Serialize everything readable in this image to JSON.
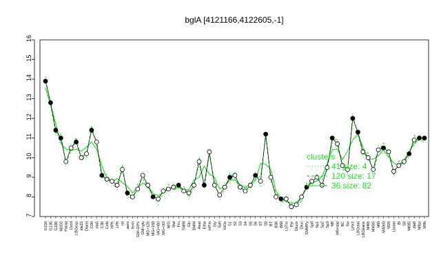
{
  "chart_data": {
    "type": "line",
    "title": "bglA [4121166,4122605,-1]",
    "xlabel": "",
    "ylabel": "",
    "ylim": [
      7,
      16
    ],
    "yticks": [
      7,
      8,
      9,
      10,
      11,
      12,
      13,
      14,
      15,
      16
    ],
    "grid": false,
    "legend_placement": "right",
    "legend": [
      {
        "label": "clusters",
        "style": "none"
      },
      {
        "label": "41 size: 4",
        "style": "dotted"
      },
      {
        "label": "120 size: 17",
        "style": "dashed"
      },
      {
        "label": "36 size: 82",
        "style": "solid"
      }
    ],
    "categories": [
      "G150",
      "G135",
      "G180",
      "M2D2",
      "Paraq",
      "Oxctl",
      "LBGexp",
      "dia15",
      "Diami",
      "C90",
      "dia5",
      "C30",
      "Cold",
      "HPh",
      "LPh",
      "nit",
      "aero",
      "ferm",
      "GM+10%",
      "GM+glu",
      "MG+120",
      "MG+150",
      "MG+t60",
      "MG+t15",
      "M/G",
      "Mal",
      "Fru",
      "SMM",
      "Glu",
      "BMM",
      "Heat",
      "Etha",
      "HiTm",
      "Gly",
      "Salt",
      "HiOs",
      "S1",
      "S2",
      "S3",
      "S4",
      "S5",
      "S6",
      "S7",
      "S8",
      "BT",
      "B36",
      "B60",
      "LoTm",
      "Pyr",
      "Gluco",
      "Gluc",
      "SMMPy",
      "Sp0",
      "Sp1",
      "Sp2",
      "Sp3",
      "M9",
      "M9+stat",
      "BC",
      "Sw",
      "LPhT",
      "LBGstat",
      "LBGtrans",
      "M40t",
      "M40t5",
      "Mt0",
      "M40e0",
      "M20",
      "Lbstat",
      "Bl",
      "S0",
      "Mt0t5",
      "dia0",
      "M9pt",
      "M9b"
    ],
    "values": [
      13.9,
      12.8,
      11.4,
      11.0,
      9.8,
      10.5,
      10.8,
      10.0,
      10.2,
      11.4,
      10.8,
      9.1,
      8.9,
      8.8,
      8.6,
      9.4,
      8.2,
      8.0,
      8.4,
      9.1,
      8.6,
      8.0,
      7.9,
      8.3,
      8.4,
      8.5,
      8.6,
      8.3,
      8.2,
      8.6,
      9.8,
      8.6,
      10.3,
      8.6,
      8.1,
      8.5,
      9.0,
      9.1,
      8.5,
      8.3,
      8.6,
      9.1,
      8.8,
      11.2,
      9.0,
      8.0,
      7.9,
      7.9,
      7.5,
      7.6,
      8.0,
      8.5,
      8.8,
      9.0,
      8.6,
      9.5,
      11.0,
      10.7,
      9.6,
      9.4,
      12.0,
      11.3,
      10.3,
      10.0,
      9.4,
      10.4,
      10.5,
      10.3,
      9.3,
      9.6,
      9.8,
      10.2,
      10.9,
      11.0,
      11.0
    ]
  }
}
